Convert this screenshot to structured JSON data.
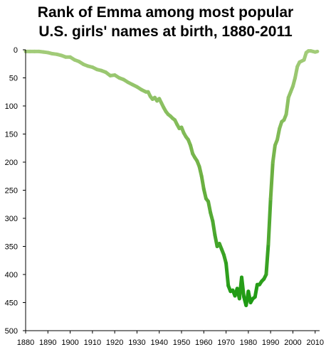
{
  "chart_data": {
    "type": "line",
    "title_line1": "Rank of Emma  among most popular",
    "title_line2": "U.S. girls' names at birth, 1880-2011",
    "xlim": [
      1880,
      2012
    ],
    "ylim": [
      0,
      500
    ],
    "y_inverted": true,
    "grid": false,
    "x_ticks": [
      1880,
      1890,
      1900,
      1910,
      1920,
      1930,
      1940,
      1950,
      1960,
      1970,
      1980,
      1990,
      2000,
      2010
    ],
    "y_ticks": [
      0,
      50,
      100,
      150,
      200,
      250,
      300,
      350,
      400,
      450,
      500
    ],
    "colors": {
      "light": "#a3cc7a",
      "mid": "#6fb144",
      "dark": "#1c9a12",
      "axis": "#000000"
    },
    "series": [
      {
        "x": [
          1880,
          1882,
          1884,
          1886,
          1888,
          1890,
          1892,
          1894,
          1896,
          1898,
          1900,
          1902,
          1904,
          1906,
          1908,
          1910,
          1912,
          1914,
          1916,
          1918,
          1920,
          1922,
          1924,
          1926,
          1928,
          1930,
          1932,
          1934,
          1935,
          1936,
          1937,
          1938,
          1939,
          1940,
          1941,
          1942,
          1943,
          1944,
          1945,
          1946,
          1947,
          1948,
          1949,
          1950,
          1951,
          1952,
          1953,
          1954,
          1955,
          1956,
          1957,
          1958,
          1959,
          1960,
          1961,
          1962,
          1963,
          1964,
          1965,
          1966,
          1967,
          1968,
          1969,
          1970,
          1971,
          1972,
          1973,
          1974,
          1975,
          1976,
          1977,
          1978,
          1979,
          1980,
          1981,
          1982,
          1983,
          1984,
          1985,
          1986,
          1987,
          1988,
          1989,
          1990,
          1991,
          1992,
          1993,
          1994,
          1995,
          1996,
          1997,
          1998,
          1999,
          2000,
          2001,
          2002,
          2003,
          2004,
          2005,
          2006,
          2007,
          2008,
          2009,
          2010,
          2011
        ],
        "values": [
          3,
          3,
          3,
          3,
          4,
          5,
          7,
          8,
          10,
          13,
          13,
          18,
          21,
          26,
          29,
          31,
          35,
          37,
          40,
          46,
          45,
          50,
          53,
          58,
          62,
          66,
          71,
          75,
          75,
          83,
          88,
          85,
          91,
          87,
          95,
          103,
          110,
          115,
          118,
          122,
          125,
          133,
          140,
          138,
          148,
          155,
          160,
          170,
          185,
          192,
          198,
          208,
          225,
          248,
          265,
          270,
          290,
          305,
          330,
          350,
          345,
          355,
          365,
          380,
          420,
          430,
          428,
          438,
          425,
          443,
          405,
          440,
          455,
          430,
          450,
          443,
          440,
          418,
          418,
          412,
          408,
          400,
          345,
          265,
          200,
          170,
          160,
          140,
          128,
          125,
          115,
          85,
          75,
          65,
          50,
          30,
          22,
          20,
          18,
          5,
          2,
          2,
          3,
          4,
          3
        ]
      }
    ]
  }
}
